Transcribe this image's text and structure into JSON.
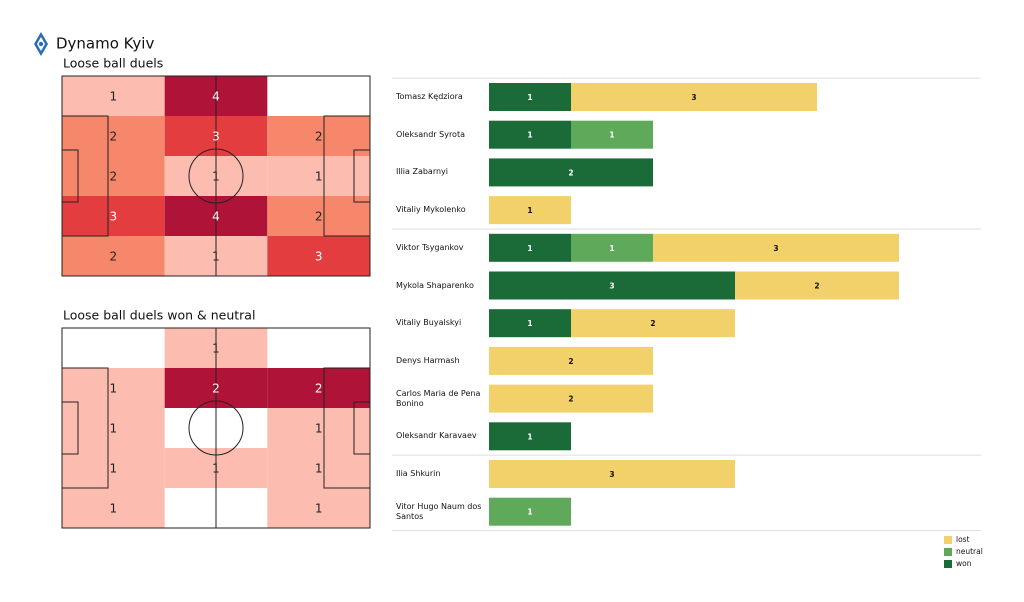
{
  "header": {
    "title": "Dynamo Kyiv"
  },
  "chart_data": [
    {
      "type": "heatmap",
      "title": "Loose ball duels",
      "values": [
        [
          1,
          4,
          null
        ],
        [
          2,
          3,
          2
        ],
        [
          2,
          1,
          1
        ],
        [
          3,
          4,
          2
        ],
        [
          2,
          1,
          3
        ]
      ],
      "colormap": [
        "#fdbcb0",
        "#f7876b",
        "#e33d3f",
        "#b01338"
      ]
    },
    {
      "type": "heatmap",
      "title": "Loose ball duels won & neutral",
      "values": [
        [
          null,
          1,
          null
        ],
        [
          1,
          2,
          2
        ],
        [
          1,
          null,
          1
        ],
        [
          1,
          1,
          1
        ],
        [
          1,
          null,
          1
        ]
      ],
      "colormap": [
        "#fdbcb0",
        "#f7876b",
        "#e33d3f",
        "#b01338"
      ]
    },
    {
      "type": "stacked-bar",
      "categories": [
        "Tomasz Kędziora",
        "Oleksandr Syrota",
        "Illia Zabarnyi",
        "Vitaliy Mykolenko",
        "Viktor Tsygankov",
        "Mykola Shaparenko",
        "Vitaliy Buyalskyi",
        "Denys Harmash",
        "Carlos Maria de Pena Bonino",
        "Oleksandr Karavaev",
        "Ilia Shkurin",
        "Vitor Hugo Naum dos Santos"
      ],
      "series": [
        {
          "name": "won",
          "color": "#1b6b38",
          "values": [
            1,
            1,
            2,
            0,
            1,
            3,
            1,
            0,
            0,
            1,
            0,
            0
          ]
        },
        {
          "name": "neutral",
          "color": "#5fa95a",
          "values": [
            0,
            1,
            0,
            0,
            1,
            0,
            0,
            0,
            0,
            0,
            0,
            1
          ]
        },
        {
          "name": "lost",
          "color": "#f2d16b",
          "values": [
            3,
            0,
            0,
            1,
            3,
            2,
            2,
            2,
            2,
            0,
            3,
            0
          ]
        }
      ],
      "xlim": [
        0,
        6
      ]
    }
  ]
}
